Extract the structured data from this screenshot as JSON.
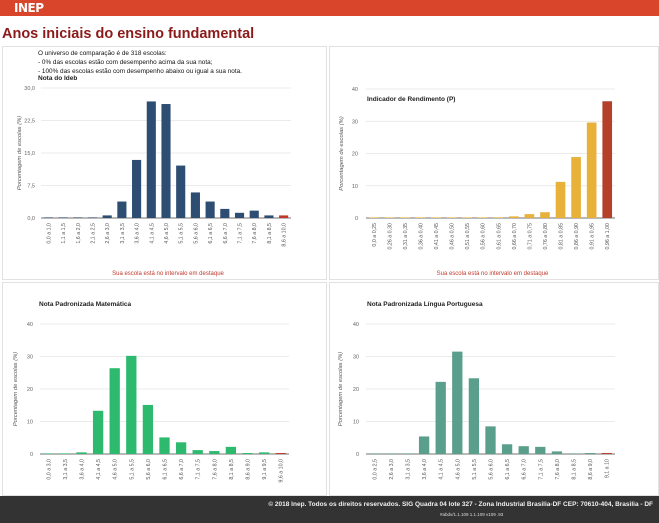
{
  "header": {
    "logo": "INEP"
  },
  "page": {
    "title": "Anos iniciais do ensino fundamental"
  },
  "comparison": {
    "line1": "O universo de comparação é de 318 escolas:",
    "line2": "- 0% das escolas estão com desempenho acima da sua nota;",
    "line3": "- 100% das escolas estão com desempenho abaixo ou igual a sua nota."
  },
  "footer": {
    "copyright": "© 2018 Inep. Todos os direitos reservados. SIG Quadra 04 lote 327 - Zona Industrial Brasilia-DF CEP: 70610-404, Brasilia - DF",
    "version": "#abdv/1.1.109 1.1.109 v109 .93"
  },
  "chart_data": [
    {
      "type": "bar",
      "title": "Nota do Ideb",
      "ylabel": "Porcentagem de escolas (%)",
      "xlabel": "",
      "ylim": [
        0,
        30
      ],
      "yticks": [
        "0,0",
        "7,5",
        "15,0",
        "22,5",
        "30,0"
      ],
      "ytick_values": [
        0,
        7.5,
        15,
        22.5,
        30
      ],
      "grid": true,
      "color": "#2e4d72",
      "highlight_color": "#c0392b",
      "highlight_index": 16,
      "categories": [
        "0,0 a 1,0",
        "1,1 a 1,5",
        "1,6 a 2,0",
        "2,1 a 2,5",
        "2,6 a 3,0",
        "3,1 a 3,5",
        "3,6 a 4,0",
        "4,1 a 4,5",
        "4,6 a 5,0",
        "5,1 a 5,5",
        "5,6 a 6,0",
        "6,1 a 6,5",
        "6,6 a 7,0",
        "7,1 a 7,5",
        "7,6 a 8,0",
        "8,1 a 8,5",
        "8,6 a 10,0"
      ],
      "values": [
        0.1,
        0.1,
        0.1,
        0.1,
        0.6,
        3.8,
        13.4,
        26.9,
        26.3,
        12.1,
        5.9,
        3.8,
        2.1,
        1.2,
        1.7,
        0.6,
        0.6
      ],
      "note": "Sua escola está no intervalo em destaque"
    },
    {
      "type": "bar",
      "title": "Indicador de Rendimento (P)",
      "ylabel": "Porcentagem de escolas (%)",
      "xlabel": "",
      "ylim": [
        0,
        40
      ],
      "yticks": [
        "0",
        "10",
        "20",
        "30",
        "40"
      ],
      "ytick_values": [
        0,
        10,
        20,
        30,
        40
      ],
      "grid": true,
      "color": "#e8b23a",
      "highlight_color": "#b5402a",
      "highlight_index": 15,
      "categories": [
        "0,0 a 0,25",
        "0,26 a 0,30",
        "0,31 a 0,35",
        "0,36 a 0,40",
        "0,41 a 0,45",
        "0,46 a 0,50",
        "0,51 a 0,55",
        "0,56 a 0,60",
        "0,61 a 0,65",
        "0,66 a 0,70",
        "0,71 a 0,75",
        "0,76 a 0,80",
        "0,81 a 0,85",
        "0,86 a 0,90",
        "0,91 a 0,95",
        "0,96 a 1,00"
      ],
      "values": [
        0.1,
        0.1,
        0.1,
        0.1,
        0.1,
        0.1,
        0.1,
        0.1,
        0.2,
        0.5,
        1.2,
        1.8,
        11.2,
        18.9,
        29.6,
        36.2
      ],
      "note": "Sua escola está no intervalo em destaque"
    },
    {
      "type": "bar",
      "title": "Nota Padronizada Matemática",
      "ylabel": "Porcentagem de escolas (%)",
      "xlabel": "",
      "ylim": [
        0,
        40
      ],
      "yticks": [
        "0",
        "10",
        "20",
        "30",
        "40"
      ],
      "ytick_values": [
        0,
        10,
        20,
        30,
        40
      ],
      "grid": true,
      "color": "#2dba6e",
      "highlight_color": "#c0392b",
      "highlight_index": 14,
      "categories": [
        "0,0 a 3,0",
        "3,1 a 3,5",
        "3,6 a 4,0",
        "4,1 a 4,5",
        "4,6 a 5,0",
        "5,1 a 5,5",
        "5,6 a 6,0",
        "6,1 a 6,5",
        "6,6 a 7,0",
        "7,1 a 7,5",
        "7,6 a 8,0",
        "8,1 a 8,5",
        "8,6 a 9,0",
        "9,1 a 9,5",
        "9,6 a 10,0"
      ],
      "values": [
        0.1,
        0.1,
        0.5,
        13.3,
        26.4,
        30.2,
        15.1,
        5.1,
        3.6,
        1.2,
        0.9,
        2.2,
        0.3,
        0.5,
        0.3
      ],
      "note": ""
    },
    {
      "type": "bar",
      "title": "Nota Padronizada Língua Portuguesa",
      "ylabel": "Porcentagem de escolas (%)",
      "xlabel": "",
      "ylim": [
        0,
        40
      ],
      "yticks": [
        "0",
        "10",
        "20",
        "30",
        "40"
      ],
      "ytick_values": [
        0,
        10,
        20,
        30,
        40
      ],
      "grid": true,
      "color": "#5a9e8c",
      "highlight_color": "#c0392b",
      "highlight_index": 14,
      "categories": [
        "0,0 a 2,5",
        "2,6 a 3,0",
        "3,1 a 3,5",
        "3,6 a 4,0",
        "4,1 a 4,5",
        "4,6 a 5,0",
        "5,1 a 5,5",
        "5,6 a 6,0",
        "6,1 a 6,5",
        "6,6 a 7,0",
        "7,1 a 7,5",
        "7,6 a 8,0",
        "8,1 a 8,5",
        "8,6 a 9,0",
        "9,1 a 10"
      ],
      "values": [
        0.1,
        0.1,
        0.1,
        5.4,
        22.2,
        31.5,
        23.3,
        8.5,
        3.0,
        2.4,
        2.2,
        0.8,
        0.1,
        0.3,
        0.3
      ],
      "note": ""
    }
  ]
}
